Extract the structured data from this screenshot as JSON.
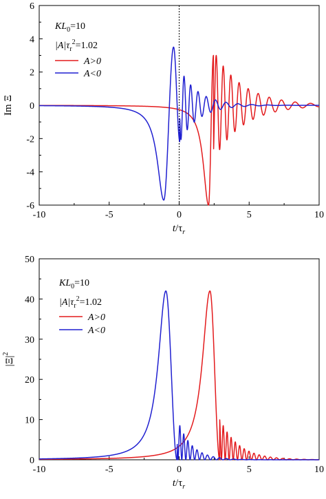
{
  "chart_data": [
    {
      "type": "line",
      "title": "",
      "xlabel_main": "t",
      "xlabel_frac": "/τ",
      "xlabel_sub": "r",
      "ylabel": "Im Ξ",
      "xlim": [
        -10,
        10
      ],
      "ylim": [
        -6,
        6
      ],
      "x_ticks": [
        -10,
        -5,
        0,
        5,
        10
      ],
      "y_ticks": [
        -6,
        -4,
        -2,
        0,
        2,
        4,
        6
      ],
      "vline_x": 0,
      "legend": {
        "line1_main": "KL",
        "line1_sub": "0",
        "line1_rest": "=10",
        "line2_a": "|A|τ",
        "line2_sub": "r",
        "line2_sup": "2",
        "line2_rest": "=1.02",
        "position": "top-left"
      },
      "series": [
        {
          "name": "A>0",
          "color": "#e31a1c"
        },
        {
          "name": "A<0",
          "color": "#1f1fd0"
        }
      ]
    },
    {
      "type": "line",
      "title": "",
      "xlabel_main": "t",
      "xlabel_frac": "/τ",
      "xlabel_sub": "r",
      "ylabel": "|Ξ|",
      "ylabel_sup": "2",
      "xlim": [
        -10,
        10
      ],
      "ylim": [
        0,
        50
      ],
      "x_ticks": [
        -10,
        -5,
        0,
        5,
        10
      ],
      "y_ticks": [
        0,
        10,
        20,
        30,
        40,
        50
      ],
      "legend": {
        "line1_main": "KL",
        "line1_sub": "0",
        "line1_rest": "=10",
        "line2_a": "|A|τ",
        "line2_sub": "r",
        "line2_sup": "2",
        "line2_rest": "=1.02",
        "position": "top-left"
      },
      "series": [
        {
          "name": "A>0",
          "color": "#e31a1c"
        },
        {
          "name": "A<0",
          "color": "#1f1fd0"
        }
      ]
    }
  ]
}
